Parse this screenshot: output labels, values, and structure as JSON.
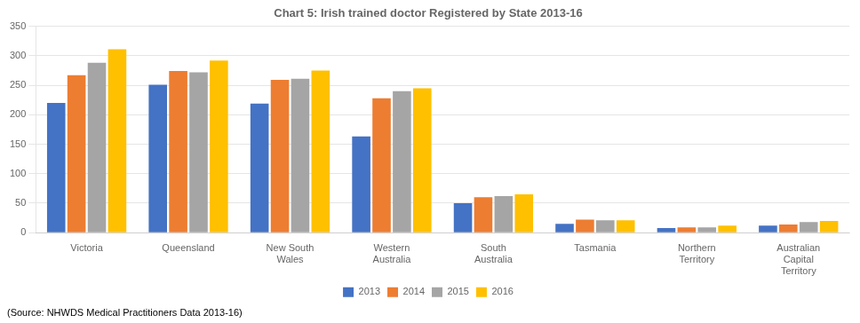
{
  "chart_data": {
    "type": "bar",
    "title": "Chart 5: Irish trained doctor Registered by State 2013-16",
    "annotations": [
      "(Source: NHWDS Medical Practitioners Data 2013-16)"
    ],
    "categories": [
      "Victoria",
      "Queensland",
      "New South\nWales",
      "Western\nAustralia",
      "South\nAustralia",
      "Tasmania",
      "Northern\nTerritory",
      "Australian\nCapital\nTerritory"
    ],
    "series": [
      {
        "name": "2013",
        "color": "#4472C4",
        "values": [
          220,
          251,
          219,
          163,
          50,
          15,
          8,
          12
        ]
      },
      {
        "name": "2014",
        "color": "#ED7D31",
        "values": [
          267,
          274,
          259,
          228,
          60,
          22,
          9,
          14
        ]
      },
      {
        "name": "2015",
        "color": "#A5A5A5",
        "values": [
          288,
          272,
          261,
          240,
          62,
          21,
          9,
          18
        ]
      },
      {
        "name": "2016",
        "color": "#FFC000",
        "values": [
          311,
          292,
          275,
          245,
          65,
          21,
          12,
          20
        ]
      }
    ],
    "ylim": [
      0,
      350
    ],
    "yticks": [
      0,
      50,
      100,
      150,
      200,
      250,
      300,
      350
    ],
    "grid": true,
    "legend": "bottom"
  }
}
